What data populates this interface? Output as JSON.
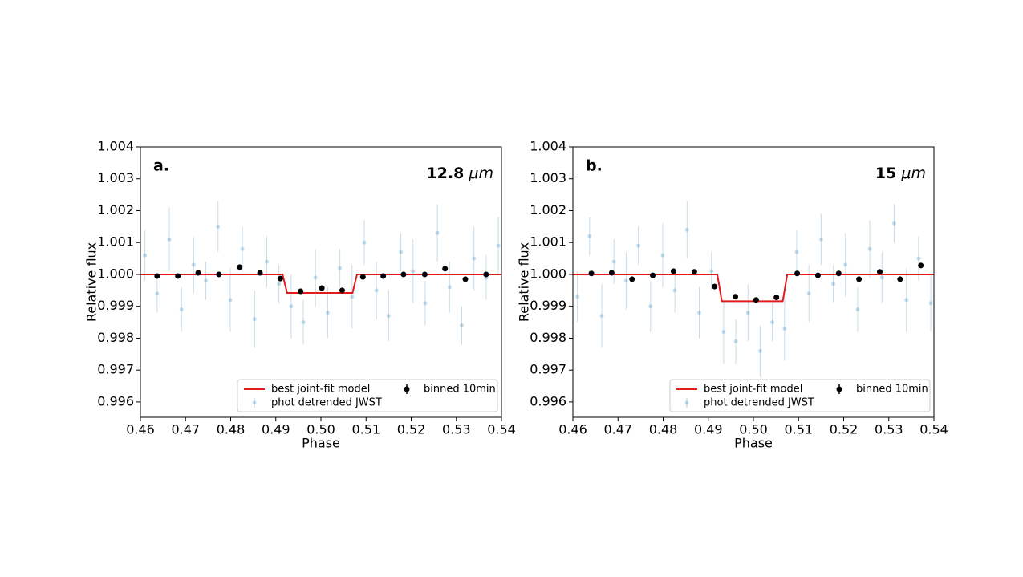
{
  "chart_data": [
    {
      "type": "scatter",
      "annotation": "a.",
      "wavelength_value": "12.8",
      "wavelength_unit": "μm",
      "xlabel": "Phase",
      "ylabel": "Relative flux",
      "xlim": [
        0.46,
        0.54
      ],
      "ylim": [
        0.99552,
        1.004
      ],
      "xticks": [
        0.46,
        0.47,
        0.48,
        0.49,
        {
          "value": 0.5,
          "label": "0.50"
        },
        0.51,
        0.52,
        0.53,
        0.54
      ],
      "yticks": [
        0.996,
        0.997,
        0.998,
        0.999,
        {
          "value": 1,
          "label": "1.000"
        },
        1.001,
        1.002,
        1.003,
        1.004
      ],
      "legend": "lower right",
      "series": [
        {
          "name": "phot detrended JWST",
          "color": "#1f77b4",
          "style": "faint",
          "x": [
            0.461,
            0.4637,
            0.4664,
            0.4691,
            0.4718,
            0.4745,
            0.4772,
            0.4799,
            0.4826,
            0.4853,
            0.488,
            0.4907,
            0.4934,
            0.4961,
            0.4988,
            0.5015,
            0.5042,
            0.5069,
            0.5096,
            0.5123,
            0.515,
            0.5177,
            0.5204,
            0.5231,
            0.5258,
            0.5285,
            0.5312,
            0.5339,
            0.5366,
            0.5393
          ],
          "values": [
            1.0006,
            0.9994,
            1.0011,
            0.9989,
            1.0003,
            0.9998,
            1.0015,
            0.9992,
            1.0008,
            0.9986,
            1.0004,
            0.9997,
            0.999,
            0.9985,
            0.9999,
            0.9988,
            1.0002,
            0.9993,
            1.001,
            0.9995,
            0.9987,
            1.0007,
            1.0001,
            0.9991,
            1.0013,
            0.9996,
            0.9984,
            1.0005,
            0.9999,
            1.0009
          ],
          "errors": [
            0.0008,
            0.0006,
            0.001,
            0.0007,
            0.0009,
            0.0006,
            0.0008,
            0.001,
            0.0007,
            0.0009,
            0.0008,
            0.0006,
            0.001,
            0.0007,
            0.0009,
            0.0008,
            0.0006,
            0.001,
            0.0007,
            0.0009,
            0.0008,
            0.0006,
            0.001,
            0.0007,
            0.0009,
            0.0008,
            0.0006,
            0.001,
            0.0007,
            0.0009
          ]
        },
        {
          "name": "best joint-fit model",
          "color": "#e41a1c",
          "style": "line",
          "x": [
            0.46,
            0.4915,
            0.4925,
            0.507,
            0.508,
            0.54
          ],
          "values": [
            1,
            1,
            0.99942,
            0.99942,
            1,
            1
          ]
        },
        {
          "name": "binned 10min",
          "color": "#000000",
          "style": "binned",
          "x": [
            0.4637,
            0.4683,
            0.4728,
            0.4774,
            0.482,
            0.4865,
            0.491,
            0.4955,
            0.5002,
            0.5047,
            0.5093,
            0.5138,
            0.5183,
            0.523,
            0.5275,
            0.532,
            0.5366
          ],
          "values": [
            0.99995,
            0.99995,
            1.00005,
            1,
            1.00023,
            1.00005,
            0.99987,
            0.99947,
            0.99957,
            0.9995,
            0.99992,
            0.99995,
            1,
            1,
            1.00018,
            0.99985,
            1
          ],
          "errors": [
            8e-05,
            8e-05,
            8e-05,
            8e-05,
            8e-05,
            8e-05,
            8e-05,
            8e-05,
            8e-05,
            8e-05,
            8e-05,
            8e-05,
            8e-05,
            8e-05,
            8e-05,
            8e-05,
            8e-05
          ]
        }
      ]
    },
    {
      "type": "scatter",
      "annotation": "b.",
      "wavelength_value": "15",
      "wavelength_unit": "μm",
      "xlabel": "Phase",
      "ylabel": "Relative flux",
      "xlim": [
        0.46,
        0.54
      ],
      "ylim": [
        0.99552,
        1.004
      ],
      "xticks": [
        0.46,
        0.47,
        0.48,
        0.49,
        {
          "value": 0.5,
          "label": "0.50"
        },
        0.51,
        0.52,
        0.53,
        0.54
      ],
      "yticks": [
        0.996,
        0.997,
        0.998,
        0.999,
        {
          "value": 1,
          "label": "1.000"
        },
        1.001,
        1.002,
        1.003,
        1.004
      ],
      "legend": "lower right",
      "series": [
        {
          "name": "phot detrended JWST",
          "color": "#1f77b4",
          "style": "faint",
          "x": [
            0.461,
            0.4637,
            0.4664,
            0.4691,
            0.4718,
            0.4745,
            0.4772,
            0.4799,
            0.4826,
            0.4853,
            0.488,
            0.4907,
            0.4934,
            0.4961,
            0.4988,
            0.5015,
            0.5042,
            0.5069,
            0.5096,
            0.5123,
            0.515,
            0.5177,
            0.5204,
            0.5231,
            0.5258,
            0.5285,
            0.5312,
            0.5339,
            0.5366,
            0.5393
          ],
          "values": [
            0.9993,
            1.0012,
            0.9987,
            1.0004,
            0.9998,
            1.0009,
            0.999,
            1.0006,
            0.9995,
            1.0014,
            0.9988,
            1.0001,
            0.9982,
            0.9979,
            0.9988,
            0.9976,
            0.9985,
            0.9983,
            1.0007,
            0.9994,
            1.0011,
            0.9997,
            1.0003,
            0.9989,
            1.0008,
            0.9999,
            1.0016,
            0.9992,
            1.0005,
            0.9991
          ],
          "errors": [
            0.0008,
            0.0006,
            0.001,
            0.0007,
            0.0009,
            0.0006,
            0.0008,
            0.001,
            0.0007,
            0.0009,
            0.0008,
            0.0006,
            0.001,
            0.0007,
            0.0009,
            0.0008,
            0.0006,
            0.001,
            0.0007,
            0.0009,
            0.0008,
            0.0006,
            0.001,
            0.0007,
            0.0009,
            0.0008,
            0.0006,
            0.001,
            0.0007,
            0.0009
          ]
        },
        {
          "name": "best joint-fit model",
          "color": "#e41a1c",
          "style": "line",
          "x": [
            0.46,
            0.492,
            0.493,
            0.5065,
            0.5075,
            0.54
          ],
          "values": [
            1,
            1,
            0.99916,
            0.99916,
            1,
            1
          ]
        },
        {
          "name": "binned 10min",
          "color": "#000000",
          "style": "binned",
          "x": [
            0.4641,
            0.4686,
            0.4731,
            0.4777,
            0.4823,
            0.4869,
            0.4914,
            0.496,
            0.5006,
            0.5051,
            0.5097,
            0.5143,
            0.5189,
            0.5234,
            0.528,
            0.5325,
            0.5371
          ],
          "values": [
            1.00003,
            1.00005,
            0.99985,
            0.99997,
            1.0001,
            1.00008,
            0.99962,
            0.9993,
            0.9992,
            0.99928,
            1.00003,
            0.99997,
            1.00003,
            0.99985,
            1.00008,
            0.99985,
            1.00028
          ],
          "errors": [
            8e-05,
            8e-05,
            8e-05,
            8e-05,
            8e-05,
            8e-05,
            8e-05,
            8e-05,
            8e-05,
            8e-05,
            8e-05,
            8e-05,
            8e-05,
            8e-05,
            8e-05,
            8e-05,
            8e-05
          ]
        }
      ]
    }
  ]
}
